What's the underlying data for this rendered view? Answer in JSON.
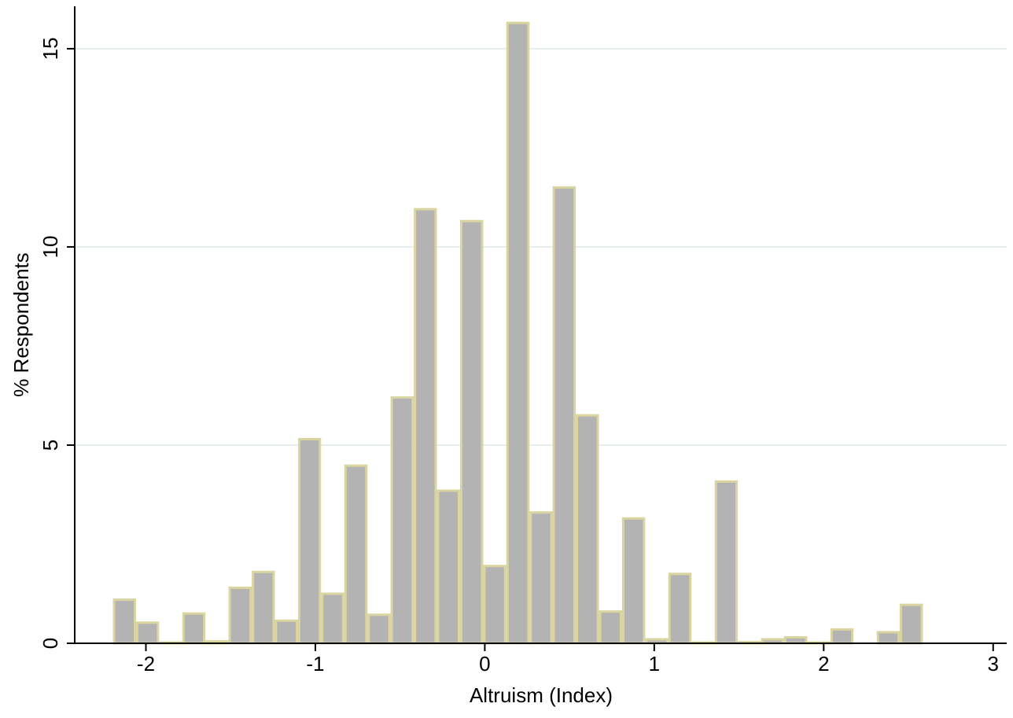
{
  "chart_data": {
    "type": "histogram",
    "x_label": "Altruism (Index)",
    "y_label": "% Respondents",
    "bins": [
      -2.195,
      -2.058,
      -1.922,
      -1.785,
      -1.649,
      -1.512,
      -1.375,
      -1.239,
      -1.102,
      -0.966,
      -0.829,
      -0.692,
      -0.556,
      -0.419,
      -0.283,
      -0.146,
      -0.009,
      0.127,
      0.264,
      0.4,
      0.537,
      0.674,
      0.81,
      0.947,
      1.083,
      1.22,
      1.357,
      1.493,
      1.63,
      1.766,
      1.903,
      2.04,
      2.176,
      2.313,
      2.449,
      2.586
    ],
    "values": [
      1.1,
      0.52,
      0.02,
      0.75,
      0.05,
      1.4,
      1.8,
      0.57,
      5.15,
      1.25,
      4.48,
      0.72,
      6.2,
      10.95,
      3.85,
      10.65,
      1.95,
      15.65,
      3.3,
      11.5,
      5.75,
      0.8,
      3.15,
      0.1,
      1.75,
      0.02,
      4.08,
      0.03,
      0.1,
      0.15,
      0.02,
      0.35,
      0,
      0.28,
      0.97
    ],
    "color": "#b3b3b3",
    "edge_color": "#d9d4a0",
    "grid_color": "#e6eeef",
    "xlim": [
      -2.42,
      3.08
    ],
    "xticks": [
      -2,
      -1,
      0,
      1,
      2,
      3
    ],
    "ylim": [
      0,
      16.07
    ],
    "yticks": [
      0,
      5,
      10,
      15
    ],
    "grid": true
  }
}
